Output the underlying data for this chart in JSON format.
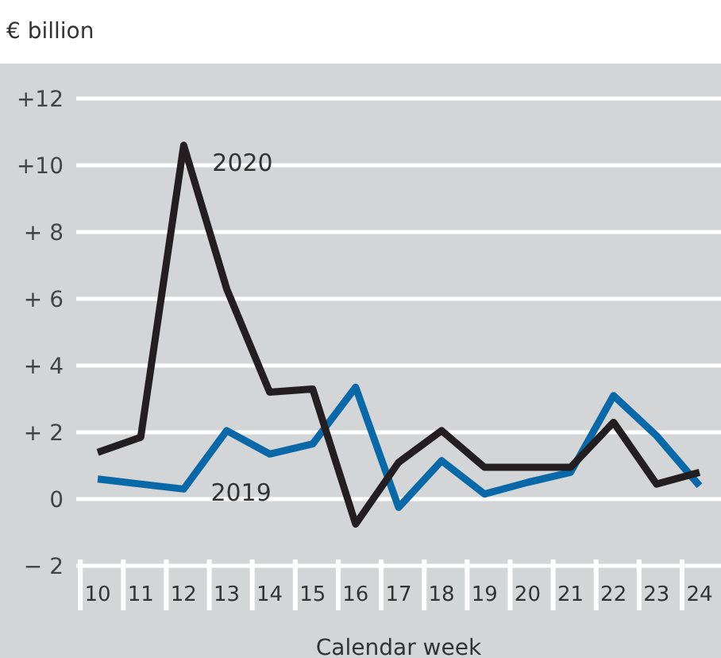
{
  "chart_data": {
    "type": "line",
    "title": "€ billion",
    "xlabel": "Calendar week",
    "categories": [
      "10",
      "11",
      "12",
      "13",
      "14",
      "15",
      "16",
      "17",
      "18",
      "19",
      "20",
      "21",
      "22",
      "23",
      "24"
    ],
    "series": [
      {
        "name": "2019",
        "color": "#0868a8",
        "values": [
          0.6,
          0.45,
          0.3,
          2.05,
          1.35,
          1.65,
          3.35,
          -0.25,
          1.15,
          0.15,
          0.5,
          0.8,
          3.1,
          1.9,
          0.4
        ]
      },
      {
        "name": "2020",
        "color": "#231f20",
        "values": [
          1.4,
          1.85,
          10.6,
          6.3,
          3.2,
          3.3,
          -0.75,
          1.1,
          2.05,
          0.95,
          0.95,
          0.95,
          2.3,
          0.45,
          0.8
        ]
      }
    ],
    "ylim": [
      -2,
      12
    ],
    "yticks": [
      {
        "value": -2,
        "label": "− 2"
      },
      0,
      {
        "value": 2,
        "label": "+ 2"
      },
      {
        "value": 4,
        "label": "+ 4"
      },
      {
        "value": 6,
        "label": "+ 6"
      },
      {
        "value": 8,
        "label": "+ 8"
      },
      {
        "value": 10,
        "label": "+10"
      },
      {
        "value": 12,
        "label": "+12"
      }
    ],
    "grid": "y",
    "marker": "none",
    "line_style": "solid"
  }
}
